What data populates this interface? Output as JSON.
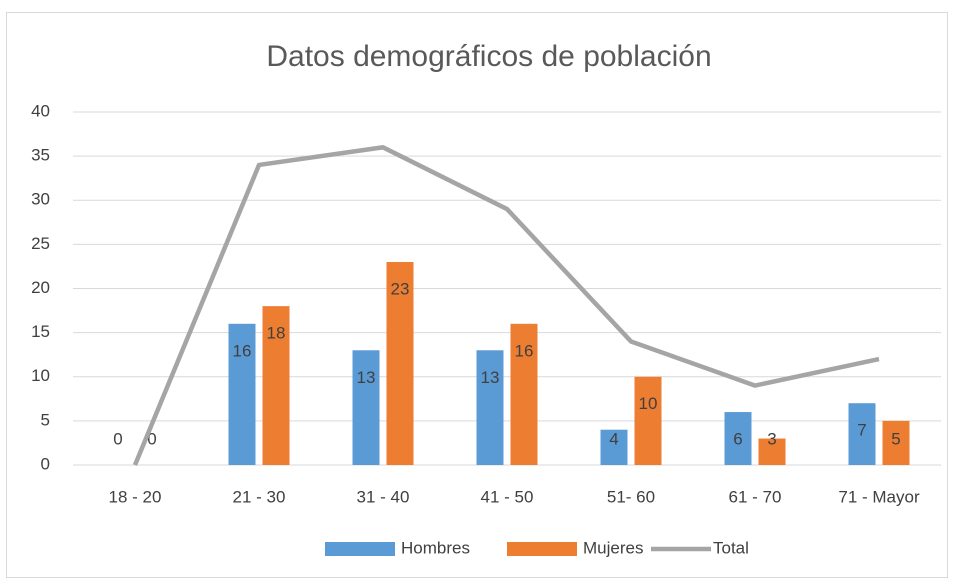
{
  "chart_data": {
    "type": "bar",
    "title": "Datos demográficos de población",
    "categories": [
      "18 - 20",
      "21 - 30",
      "31 - 40",
      "41 - 50",
      "51- 60",
      "61 - 70",
      "71 - Mayor"
    ],
    "series": [
      {
        "name": "Hombres",
        "type": "bar",
        "color": "#5b9bd5",
        "values": [
          0,
          16,
          13,
          13,
          4,
          6,
          7
        ]
      },
      {
        "name": "Mujeres",
        "type": "bar",
        "color": "#ed7d31",
        "values": [
          0,
          18,
          23,
          16,
          10,
          3,
          5
        ]
      },
      {
        "name": "Total",
        "type": "line",
        "color": "#a5a5a5",
        "values": [
          0,
          34,
          36,
          29,
          14,
          9,
          12
        ]
      }
    ],
    "ylim": [
      0,
      40
    ],
    "yticks": [
      0,
      5,
      10,
      15,
      20,
      25,
      30,
      35,
      40
    ],
    "grid": true,
    "legend": "bottom"
  }
}
